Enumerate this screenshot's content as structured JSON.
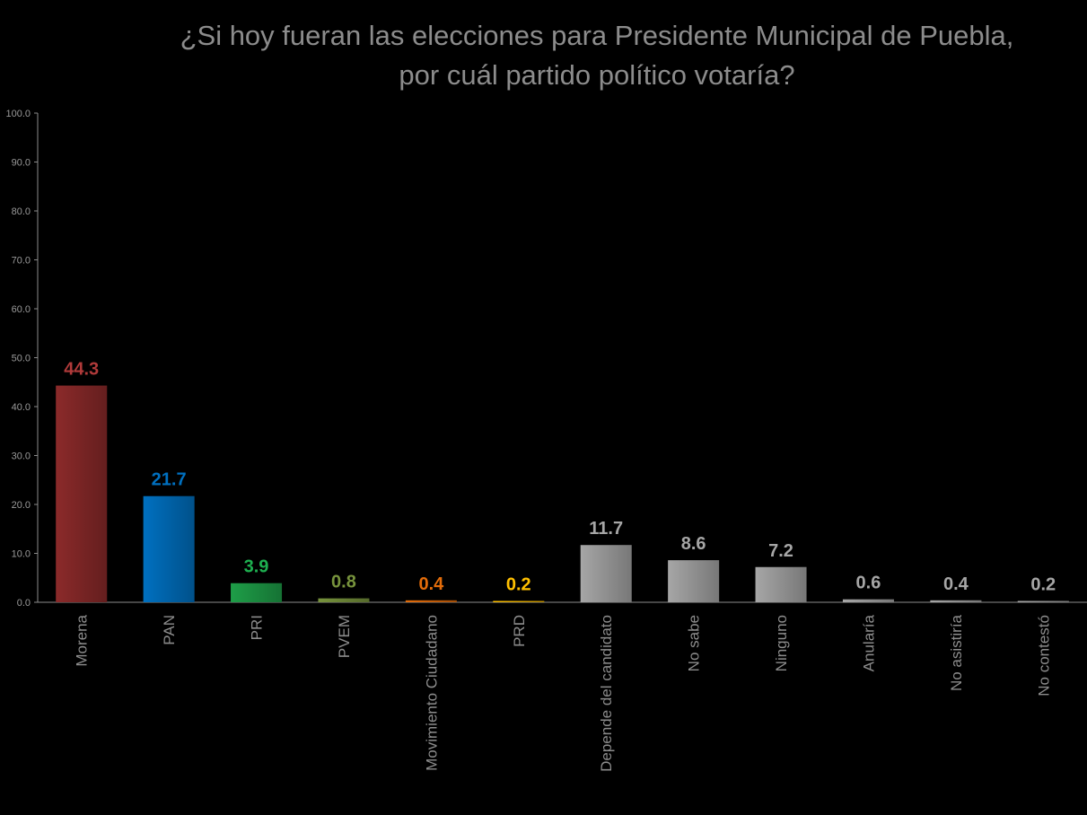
{
  "title_line1": "¿Si hoy fueran las elecciones para Presidente Municipal de Puebla,",
  "title_line2": "por cuál partido político votaría?",
  "chart_data": {
    "type": "bar",
    "title": "¿Si hoy fueran las elecciones para Presidente Municipal de Puebla, por cuál partido político votaría?",
    "xlabel": "",
    "ylabel": "",
    "ylim": [
      0,
      100
    ],
    "yticks": [
      "0.0",
      "10.0",
      "20.0",
      "30.0",
      "40.0",
      "50.0",
      "60.0",
      "70.0",
      "80.0",
      "90.0",
      "100.0"
    ],
    "grid": false,
    "categories": [
      "Morena",
      "PAN",
      "PRI",
      "PVEM",
      "Movimiento Ciudadano",
      "PRD",
      "Depende del candidato",
      "No sabe",
      "Ninguno",
      "Anularía",
      "No asistiría",
      "No contestó"
    ],
    "values": [
      44.3,
      21.7,
      3.9,
      0.8,
      0.4,
      0.2,
      11.7,
      8.6,
      7.2,
      0.6,
      0.4,
      0.2
    ],
    "value_labels": [
      "44.3",
      "21.7",
      "3.9",
      "0.8",
      "0.4",
      "0.2",
      "11.7",
      "8.6",
      "7.2",
      "0.6",
      "0.4",
      "0.2"
    ],
    "bar_colors": [
      "#8b2a2a",
      "#0070c0",
      "#1e9e48",
      "#77933c",
      "#e36c0a",
      "#ffc000",
      "#a6a6a6",
      "#a6a6a6",
      "#a6a6a6",
      "#a6a6a6",
      "#a6a6a6",
      "#a6a6a6"
    ],
    "label_colors": [
      "#b03a3a",
      "#0070c0",
      "#1eb050",
      "#77933c",
      "#e36c0a",
      "#ffc000",
      "#a6a6a6",
      "#a6a6a6",
      "#a6a6a6",
      "#a6a6a6",
      "#a6a6a6",
      "#a6a6a6"
    ]
  }
}
